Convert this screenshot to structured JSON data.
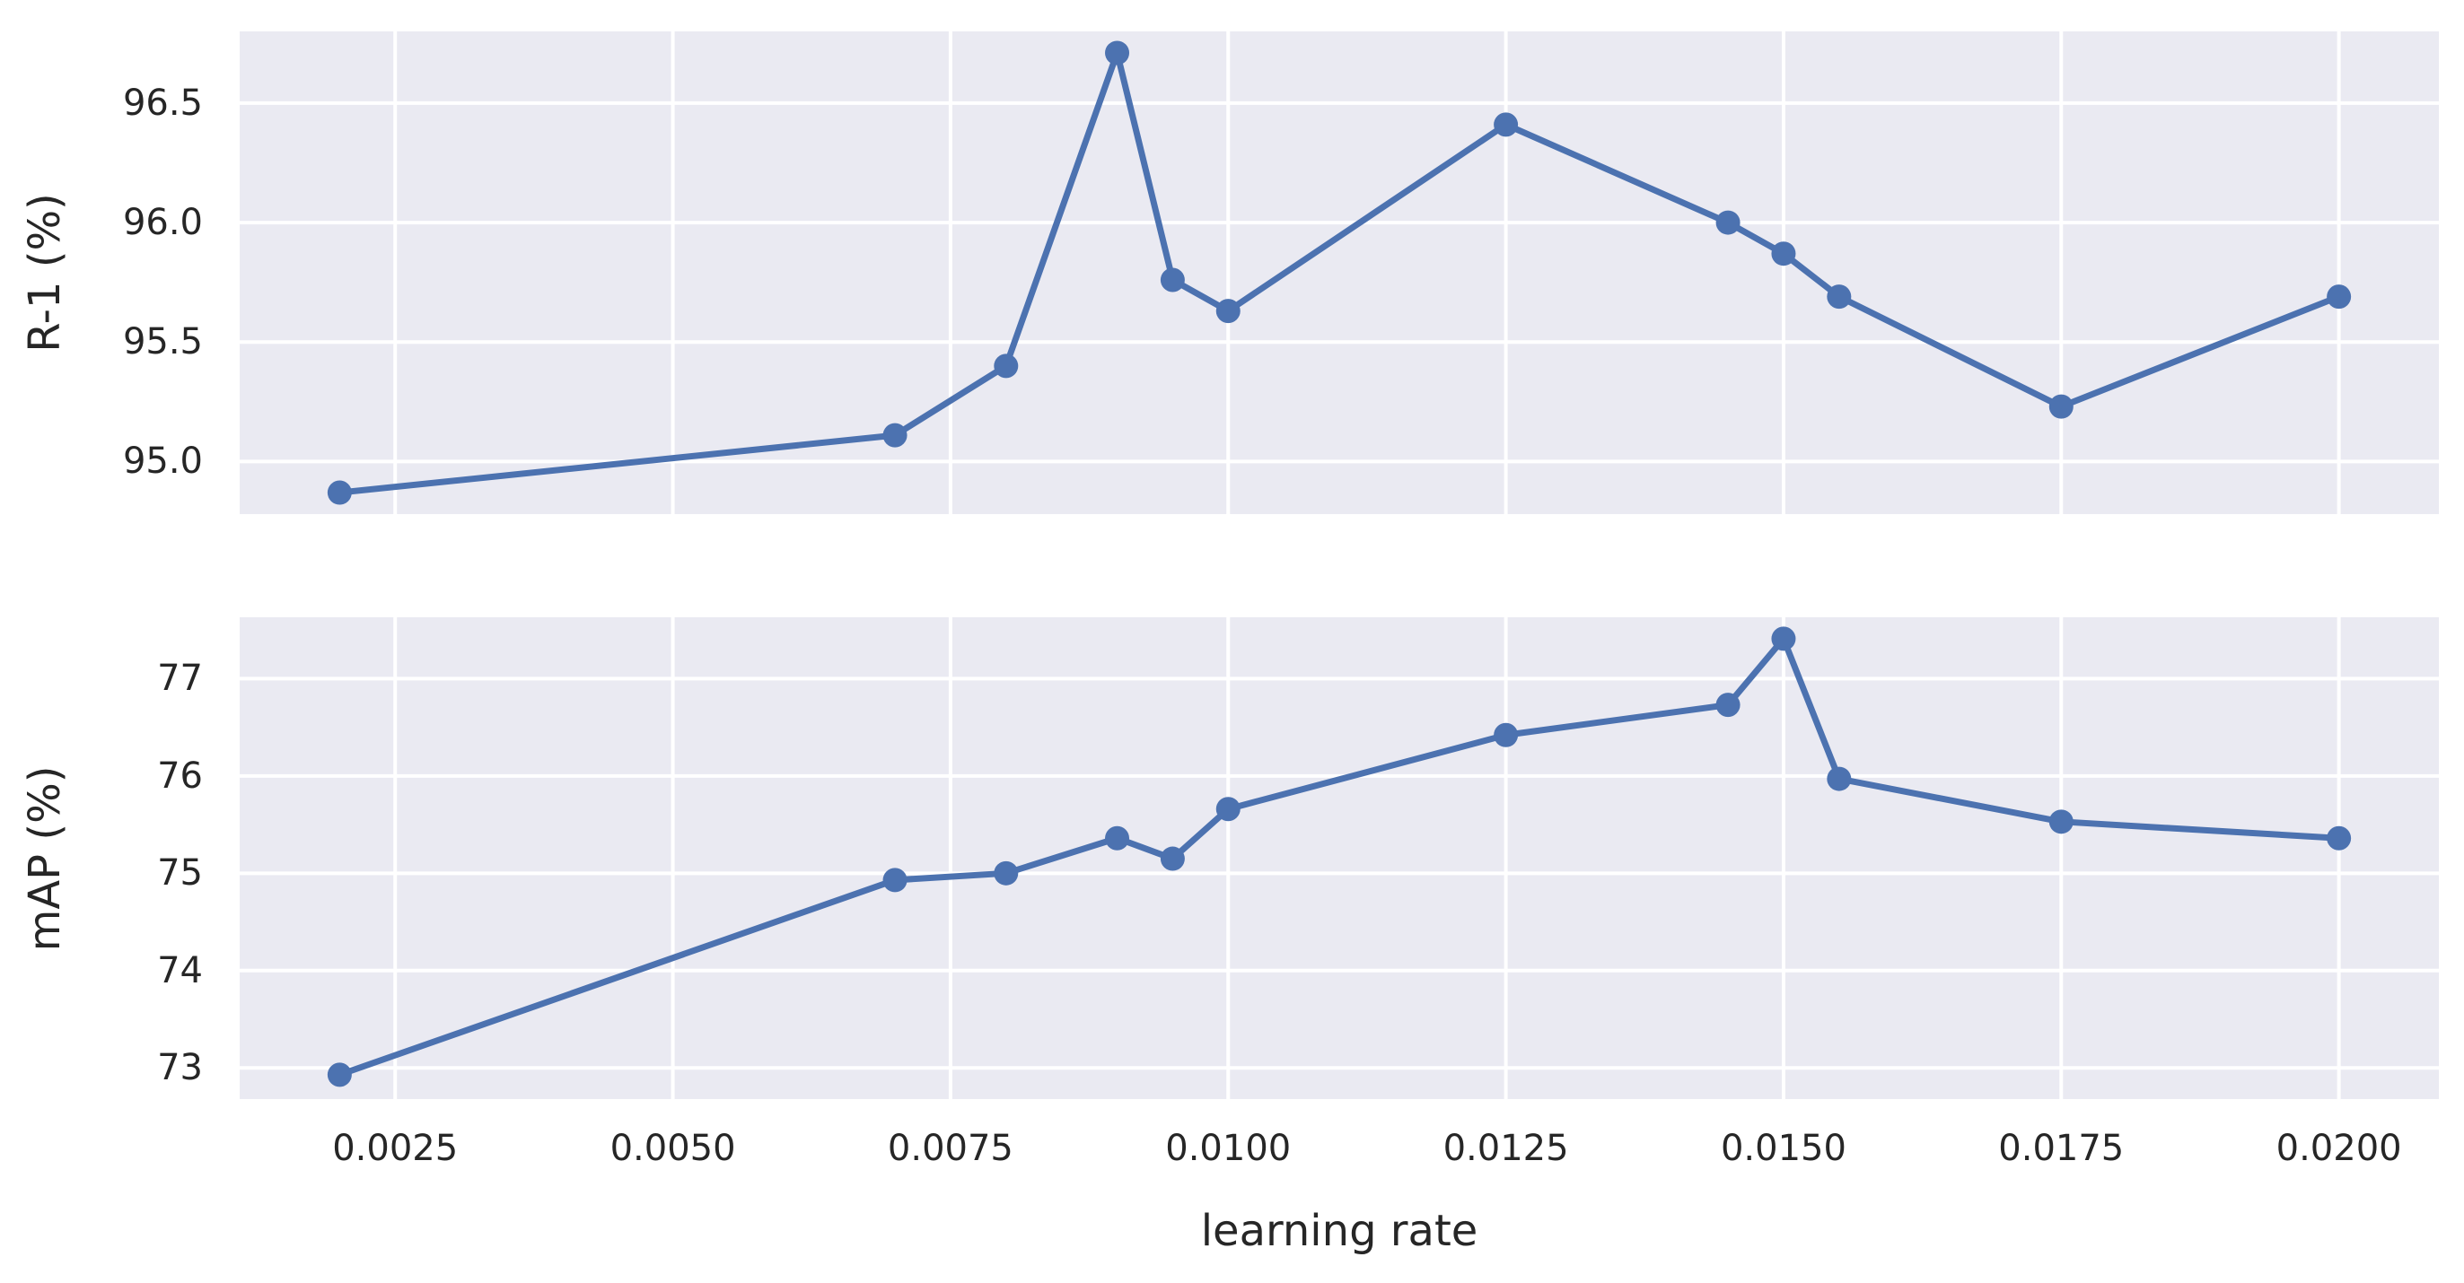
{
  "style": {
    "line_color": "#4C72B0",
    "marker_color": "#4C72B0",
    "plot_background": "#EAEAF2",
    "grid_color": "#FFFFFF",
    "text_color": "#262626",
    "figure_background": "#FFFFFF"
  },
  "shared_x": {
    "label": "learning rate",
    "xlim": [
      0.0011,
      0.0209
    ],
    "xticks": [
      0.0025,
      0.005,
      0.0075,
      0.01,
      0.0125,
      0.015,
      0.0175,
      0.02
    ],
    "xtick_labels": [
      "0.0025",
      "0.0050",
      "0.0075",
      "0.0100",
      "0.0125",
      "0.0150",
      "0.0175",
      "0.0200"
    ],
    "grid": true,
    "legend": "none"
  },
  "chart_data": [
    {
      "type": "line",
      "ylabel": "R-1 (%)",
      "x": [
        0.002,
        0.007,
        0.008,
        0.009,
        0.0095,
        0.01,
        0.0125,
        0.0145,
        0.015,
        0.0155,
        0.0175,
        0.02
      ],
      "y": [
        94.87,
        95.11,
        95.4,
        96.71,
        95.76,
        95.63,
        96.41,
        96.0,
        95.87,
        95.69,
        95.23,
        95.69
      ],
      "ylim": [
        94.78,
        96.8
      ],
      "yticks": [
        95.0,
        95.5,
        96.0,
        96.5
      ],
      "ytick_labels": [
        "95.0",
        "95.5",
        "96.0",
        "96.5"
      ],
      "grid": true
    },
    {
      "type": "line",
      "ylabel": "mAP (%)",
      "x": [
        0.002,
        0.007,
        0.008,
        0.009,
        0.0095,
        0.01,
        0.0125,
        0.0145,
        0.015,
        0.0155,
        0.0175,
        0.02
      ],
      "y": [
        72.93,
        74.93,
        75.0,
        75.36,
        75.15,
        75.66,
        76.42,
        76.73,
        77.41,
        75.97,
        75.53,
        75.36
      ],
      "ylim": [
        72.68,
        77.63
      ],
      "yticks": [
        73,
        74,
        75,
        76,
        77
      ],
      "ytick_labels": [
        "73",
        "74",
        "75",
        "76",
        "77"
      ],
      "grid": true
    }
  ]
}
